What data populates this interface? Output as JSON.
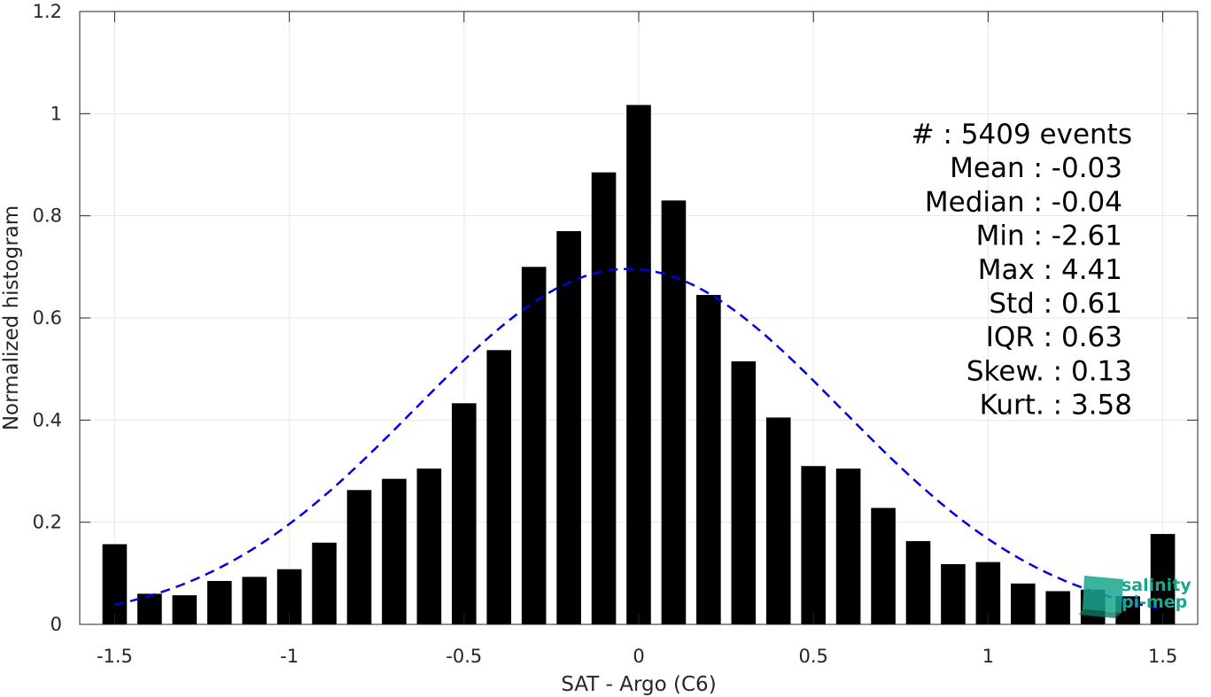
{
  "chart_data": {
    "type": "bar",
    "xlabel": "SAT - Argo (C6)",
    "ylabel": "Normalized histogram",
    "xlim": [
      -1.6,
      1.6
    ],
    "ylim": [
      0,
      1.2
    ],
    "grid": true,
    "x_ticks": [
      -1.5,
      -1,
      -0.5,
      0,
      0.5,
      1,
      1.5
    ],
    "x_tick_labels": [
      "-1.5",
      "-1",
      "-0.5",
      "0",
      "0.5",
      "1",
      "1.5"
    ],
    "y_ticks": [
      0,
      0.2,
      0.4,
      0.6,
      0.8,
      1,
      1.2
    ],
    "y_tick_labels": [
      "0",
      "0.2",
      "0.4",
      "0.6",
      "0.8",
      "1",
      "1.2"
    ],
    "bar_color": "#000000",
    "bar_width": 0.07,
    "bins": [
      -1.5,
      -1.4,
      -1.3,
      -1.2,
      -1.1,
      -1.0,
      -0.9,
      -0.8,
      -0.7,
      -0.6,
      -0.5,
      -0.4,
      -0.3,
      -0.2,
      -0.1,
      0.0,
      0.1,
      0.2,
      0.3,
      0.4,
      0.5,
      0.6,
      0.7,
      0.8,
      0.9,
      1.0,
      1.1,
      1.2,
      1.3,
      1.4,
      1.5
    ],
    "values": [
      0.157,
      0.06,
      0.057,
      0.085,
      0.093,
      0.108,
      0.16,
      0.263,
      0.285,
      0.305,
      0.433,
      0.537,
      0.7,
      0.77,
      0.885,
      1.017,
      0.83,
      0.645,
      0.515,
      0.405,
      0.31,
      0.305,
      0.228,
      0.163,
      0.118,
      0.122,
      0.08,
      0.065,
      0.068,
      0.055,
      0.177
    ],
    "fit": {
      "type": "gaussian",
      "mean": -0.03,
      "std": 0.61,
      "amplitude": 0.696,
      "x_range": [
        -1.5,
        1.5
      ],
      "color": "#0000e0",
      "style": "dashed"
    }
  },
  "stats": [
    "#  : 5409 events",
    "Mean : -0.03",
    "Median : -0.04",
    "Min : -2.61",
    "Max : 4.41",
    "Std : 0.61",
    "IQR : 0.63",
    "Skew. : 0.13",
    "Kurt. : 3.58"
  ],
  "logo": {
    "line1": "salinity",
    "line2": "pi-mep",
    "color": "#1aa68e"
  }
}
